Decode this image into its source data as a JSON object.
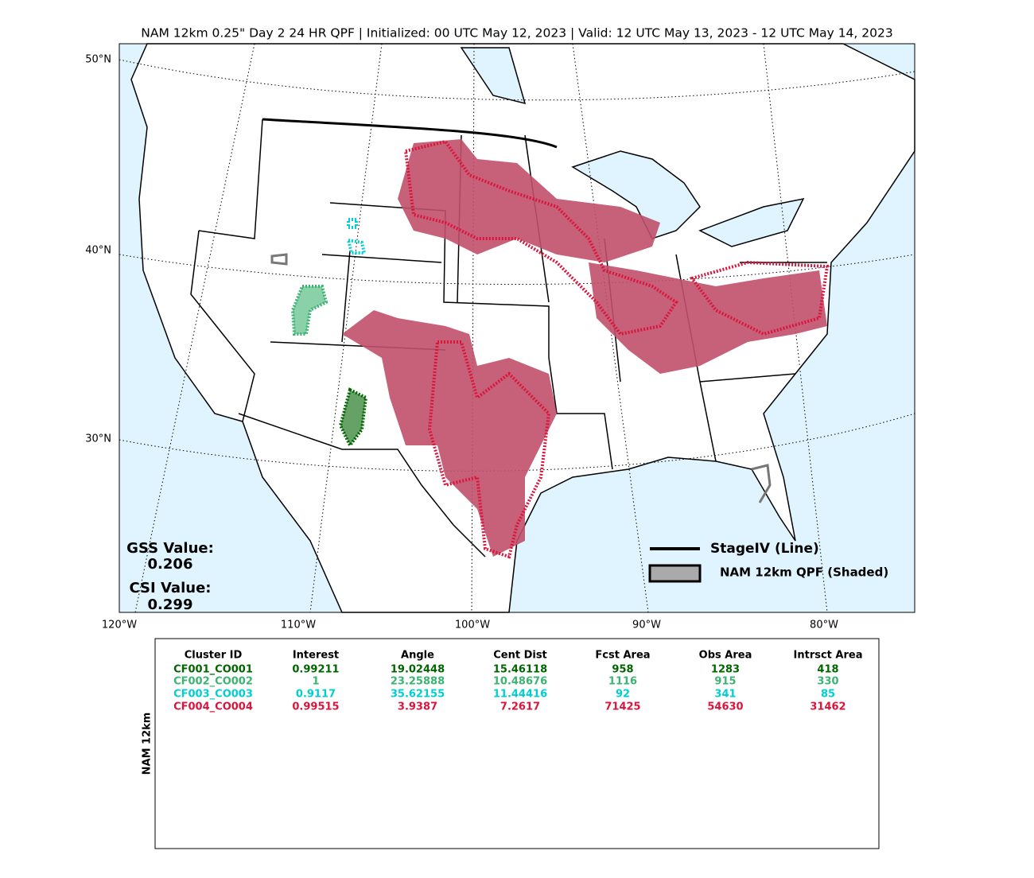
{
  "title": "NAM 12km 0.25\" Day 2 24 HR QPF | Initialized: 00 UTC May 12, 2023 | Valid: 12 UTC May 13, 2023 - 12 UTC May 14, 2023",
  "map": {
    "lat_labels": [
      "50°N",
      "40°N",
      "30°N"
    ],
    "lon_labels": [
      "120°W",
      "110°W",
      "100°W",
      "90°W",
      "80°W"
    ],
    "scores": {
      "gss_label": "GSS Value:",
      "gss_value": "0.206",
      "csi_label": "CSI Value:",
      "csi_value": "0.299"
    },
    "legend": {
      "line": "StageIV (Line)",
      "shaded": "NAM 12km QPF (Shaded)"
    }
  },
  "table": {
    "ylabel": "NAM 12km",
    "columns": [
      "Cluster ID",
      "Interest",
      "Angle",
      "Cent Dist",
      "Fcst Area",
      "Obs Area",
      "Intrsct Area"
    ],
    "row_colors": [
      "#006400",
      "#3cb371",
      "#00ced1",
      "#dc143c"
    ],
    "rows": [
      [
        "CF001_CO001",
        "0.99211",
        "19.02448",
        "15.46118",
        "958",
        "1283",
        "418"
      ],
      [
        "CF002_CO002",
        "1",
        "23.25888",
        "10.48676",
        "1116",
        "915",
        "330"
      ],
      [
        "CF003_CO003",
        "0.9117",
        "35.62155",
        "11.44416",
        "92",
        "341",
        "85"
      ],
      [
        "CF004_CO004",
        "0.99515",
        "3.9387",
        "7.2617",
        "71425",
        "54630",
        "31462"
      ]
    ]
  }
}
